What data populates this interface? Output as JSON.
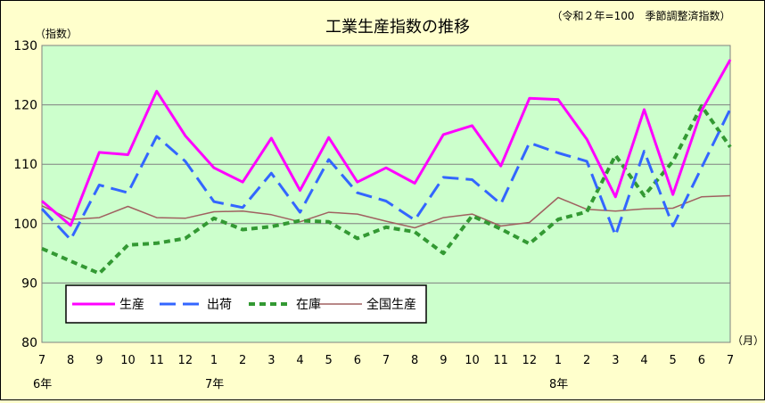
{
  "chart_data": {
    "type": "line",
    "title": "工業生産指数の推移",
    "subtitle": "（令和２年=100　季節調整済指数）",
    "ylabel": "（指数）",
    "xunit": "（月）",
    "ylim": [
      80,
      130
    ],
    "yticks": [
      80,
      90,
      100,
      110,
      120,
      130
    ],
    "categories": [
      "7",
      "8",
      "9",
      "10",
      "11",
      "12",
      "1",
      "2",
      "3",
      "4",
      "5",
      "6",
      "7",
      "8",
      "9",
      "10",
      "11",
      "12",
      "1",
      "2",
      "3",
      "4",
      "5",
      "6",
      "7"
    ],
    "year_labels": [
      {
        "label": "6年",
        "index": 0
      },
      {
        "label": "7年",
        "index": 6
      },
      {
        "label": "8年",
        "index": 18
      }
    ],
    "grid": true,
    "legend_position": "bottom-left",
    "series": [
      {
        "name": "生産",
        "color": "#ff00ff",
        "style": "solid-thick",
        "values": [
          103.8,
          99.7,
          112.0,
          111.6,
          122.3,
          114.8,
          109.4,
          107.0,
          114.4,
          105.6,
          114.5,
          107.0,
          109.4,
          106.8,
          115.0,
          116.5,
          109.7,
          121.1,
          120.9,
          114.2,
          104.5,
          119.2,
          104.9,
          119.0,
          127.6
        ]
      },
      {
        "name": "出荷",
        "color": "#3366ff",
        "style": "dashed-long",
        "values": [
          102.5,
          97.3,
          106.5,
          105.2,
          114.7,
          110.5,
          103.7,
          102.7,
          108.5,
          101.9,
          110.8,
          105.2,
          103.8,
          100.6,
          107.8,
          107.4,
          103.3,
          113.6,
          111.9,
          110.5,
          98.0,
          112.2,
          99.6,
          109.4,
          119.3
        ]
      },
      {
        "name": "在庫",
        "color": "#339933",
        "style": "dotted-thick",
        "values": [
          95.8,
          93.7,
          91.6,
          96.4,
          96.7,
          97.5,
          100.9,
          99.0,
          99.5,
          100.5,
          100.3,
          97.5,
          99.4,
          98.6,
          95.0,
          101.3,
          99.1,
          96.6,
          100.7,
          102.0,
          111.5,
          104.7,
          110.5,
          119.8,
          112.9
        ]
      },
      {
        "name": "全国生産",
        "color": "#a06060",
        "style": "solid-thin",
        "values": [
          103.0,
          100.7,
          101.0,
          102.9,
          101.0,
          100.9,
          102.0,
          102.1,
          101.5,
          100.3,
          101.9,
          101.6,
          100.4,
          99.3,
          101.0,
          101.6,
          99.6,
          100.2,
          104.4,
          102.4,
          102.1,
          102.5,
          102.6,
          104.5,
          104.7
        ]
      }
    ]
  }
}
